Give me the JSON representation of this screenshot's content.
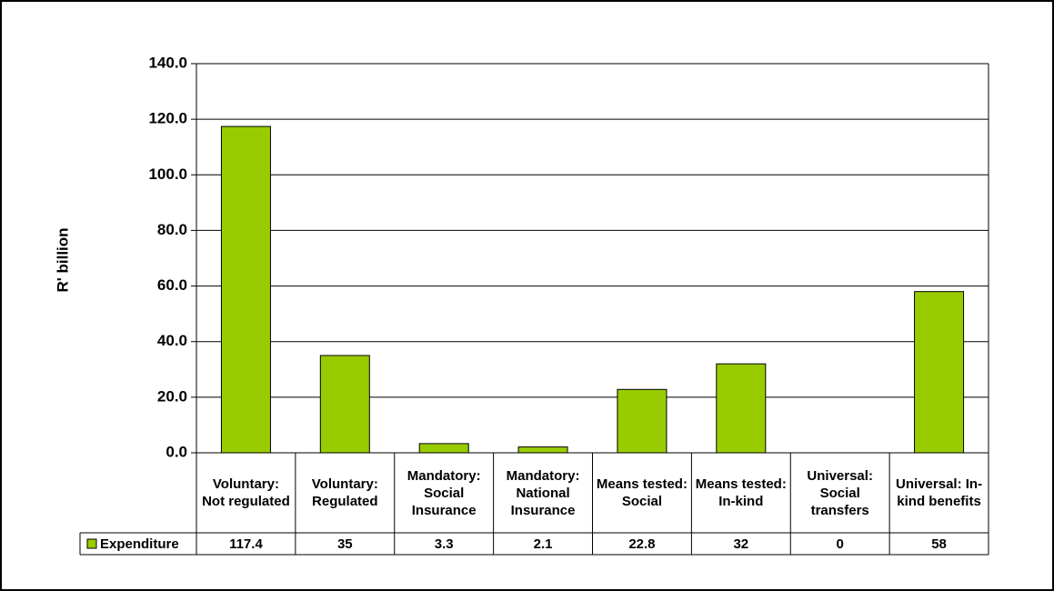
{
  "chart_data": {
    "type": "bar",
    "y_label": "R' billion",
    "categories": [
      "Voluntary: Not regulated",
      "Voluntary: Regulated",
      "Mandatory: Social Insurance",
      "Mandatory: National Insurance",
      "Means tested: Social",
      "Means tested: In-kind",
      "Universal: Social transfers",
      "Universal: In-kind benefits"
    ],
    "series": [
      {
        "name": "Expenditure",
        "color": "#99cc00",
        "values": [
          117.4,
          35,
          3.3,
          2.1,
          22.8,
          32,
          0,
          58
        ]
      }
    ],
    "ylim": [
      0,
      140
    ],
    "yticks": [
      {
        "value": 0,
        "label": "0.0"
      },
      {
        "value": 20,
        "label": "20.0"
      },
      {
        "value": 40,
        "label": "40.0"
      },
      {
        "value": 60,
        "label": "60.0"
      },
      {
        "value": 80,
        "label": "80.0"
      },
      {
        "value": 100,
        "label": "100.0"
      },
      {
        "value": 120,
        "label": "120.0"
      },
      {
        "value": 140,
        "label": "140.0"
      }
    ],
    "grid": true
  }
}
